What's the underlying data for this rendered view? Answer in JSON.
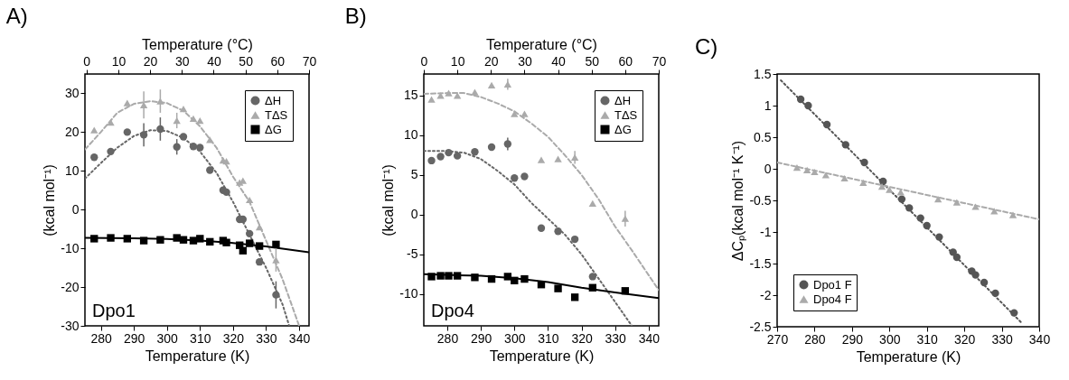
{
  "chart_data": [
    {
      "type": "scatter",
      "title": "A)",
      "xlabel": "Temperature (K)",
      "ylabel": "(kcal mol⁻¹)",
      "x2label": "Temperature (°C)",
      "xlim": [
        275.2,
        343
      ],
      "xticks": [
        280,
        290,
        300,
        310,
        320,
        330,
        340
      ],
      "x2lim": [
        -0.5,
        70
      ],
      "x2ticks": [
        0,
        10,
        20,
        30,
        40,
        50,
        60,
        70
      ],
      "ylim": [
        -30,
        35
      ],
      "yticks": [
        -30,
        -20,
        -10,
        0,
        10,
        20,
        30
      ],
      "legend": "top right",
      "annotations": [
        "Dpo1"
      ],
      "series": [
        {
          "type": "line",
          "color": "#666666",
          "line_style": "dotted",
          "x": [
            275.2,
            280,
            285,
            290,
            295,
            300,
            305,
            310,
            315,
            320,
            325,
            330,
            335,
            337
          ],
          "values": [
            8,
            12,
            16,
            19,
            20.5,
            20.3,
            18.5,
            15,
            9.5,
            2,
            -6.5,
            -15,
            -24.5,
            -30
          ]
        },
        {
          "type": "line",
          "color": "#aaaaaa",
          "line_style": "dashed",
          "x": [
            275.2,
            280,
            285,
            290,
            295,
            300,
            305,
            310,
            315,
            320,
            325,
            330,
            335,
            340
          ],
          "values": [
            15.5,
            20,
            25,
            27.3,
            28,
            27.5,
            25.5,
            21.5,
            16,
            8.5,
            2,
            -8,
            -18,
            -30
          ]
        },
        {
          "type": "line",
          "color": "#000000",
          "line_style": "solid",
          "x": [
            275.2,
            290,
            300,
            310,
            320,
            330,
            343
          ],
          "values": [
            -7.3,
            -7.4,
            -7.6,
            -8,
            -8.6,
            -9.5,
            -11
          ]
        },
        {
          "type": "scatter",
          "name": "ΔH",
          "color": "#666666",
          "marker": "circle",
          "x": [
            278,
            283,
            288,
            293,
            298,
            303,
            305,
            308,
            310,
            313,
            317,
            318,
            322,
            323,
            325,
            328,
            333
          ],
          "values": [
            13.5,
            15,
            20,
            19.3,
            20.8,
            16.2,
            18.8,
            16.3,
            16,
            10.2,
            5,
            4.5,
            -2.5,
            -2.5,
            -6.2,
            -13.5,
            -22
          ],
          "errors": [
            null,
            null,
            null,
            3,
            3,
            2,
            null,
            null,
            null,
            null,
            null,
            null,
            null,
            null,
            null,
            null,
            3.5
          ]
        },
        {
          "type": "scatter",
          "name": "TΔS",
          "color": "#aaaaaa",
          "marker": "triangle",
          "x": [
            278,
            283,
            288,
            293,
            298,
            303,
            305,
            308,
            310,
            313,
            317,
            318,
            322,
            323,
            325,
            328,
            333
          ],
          "values": [
            20.5,
            22.5,
            27.5,
            27,
            28,
            23,
            26,
            23.5,
            23,
            18,
            12.7,
            12.5,
            7,
            7.5,
            2.5,
            -4.5,
            -13
          ],
          "errors": [
            null,
            null,
            null,
            3.5,
            3,
            2,
            null,
            null,
            null,
            null,
            null,
            null,
            null,
            null,
            null,
            null,
            3
          ]
        },
        {
          "type": "scatter",
          "name": "ΔG",
          "color": "#000000",
          "marker": "square",
          "x": [
            278,
            283,
            288,
            293,
            298,
            303,
            305,
            308,
            310,
            313,
            317,
            318,
            322,
            323,
            325,
            328,
            333
          ],
          "values": [
            -7.5,
            -7.3,
            -7.5,
            -8,
            -7.8,
            -7.3,
            -7.8,
            -8,
            -7.5,
            -8.3,
            -8,
            -8.5,
            -9.2,
            -10.6,
            -8.7,
            -9.4,
            -9
          ]
        }
      ]
    },
    {
      "type": "scatter",
      "title": "B)",
      "xlabel": "Temperature (K)",
      "ylabel": "(kcal mol⁻¹)",
      "x2label": "Temperature (°C)",
      "xlim": [
        273,
        343
      ],
      "xticks": [
        280,
        290,
        300,
        310,
        320,
        330,
        340
      ],
      "x2lim": [
        0,
        70
      ],
      "x2ticks": [
        0,
        10,
        20,
        30,
        40,
        50,
        60,
        70
      ],
      "ylim": [
        -14,
        17.7
      ],
      "yticks": [
        -10,
        -5,
        0,
        5,
        10,
        15
      ],
      "legend": "top right",
      "annotations": [
        "Dpo4"
      ],
      "series": [
        {
          "type": "line",
          "color": "#666666",
          "line_style": "dotted",
          "x": [
            273,
            280,
            285,
            290,
            295,
            300,
            305,
            310,
            315,
            320,
            325,
            330,
            335
          ],
          "values": [
            8,
            8,
            7.8,
            7,
            5.5,
            3.8,
            1.5,
            -0.5,
            -2.5,
            -5,
            -8,
            -11,
            -14
          ]
        },
        {
          "type": "line",
          "color": "#aaaaaa",
          "line_style": "dashed",
          "x": [
            273,
            280,
            285,
            290,
            295,
            300,
            305,
            310,
            315,
            320,
            325,
            330,
            335,
            343
          ],
          "values": [
            15.2,
            15.3,
            15.3,
            14.8,
            14,
            13,
            11.5,
            9.8,
            7.5,
            5,
            2,
            -1.5,
            -4.5,
            -9.5
          ]
        },
        {
          "type": "line",
          "color": "#000000",
          "line_style": "solid",
          "x": [
            273,
            290,
            300,
            310,
            320,
            330,
            343
          ],
          "values": [
            -7.5,
            -7.7,
            -8,
            -8.5,
            -9.2,
            -9.8,
            -10.5
          ]
        },
        {
          "type": "scatter",
          "name": "ΔH",
          "color": "#666666",
          "marker": "circle",
          "x": [
            275.3,
            278,
            280.4,
            283,
            288.2,
            293.2,
            298,
            300,
            303,
            308,
            313,
            318,
            323.3
          ],
          "values": [
            6.8,
            7.3,
            7.8,
            7.4,
            7.9,
            8.5,
            8.9,
            4.6,
            4.8,
            -1.7,
            -2.1,
            -3.1,
            -7.8
          ],
          "errors": [
            null,
            null,
            null,
            null,
            null,
            null,
            0.8,
            null,
            null,
            null,
            null,
            null,
            null
          ]
        },
        {
          "type": "scatter",
          "name": "TΔS",
          "color": "#aaaaaa",
          "marker": "triangle",
          "x": [
            275.3,
            278,
            280.4,
            283,
            288.2,
            293.2,
            298,
            300,
            303,
            308,
            313,
            318,
            323.3,
            333
          ],
          "values": [
            14.5,
            15,
            15.3,
            15,
            15.4,
            16.3,
            16.4,
            12.7,
            12.7,
            6.9,
            7,
            7.2,
            1.4,
            -0.5
          ],
          "errors": [
            null,
            null,
            null,
            null,
            null,
            null,
            0.7,
            null,
            null,
            null,
            null,
            0.8,
            null,
            1
          ]
        },
        {
          "type": "scatter",
          "name": "ΔG",
          "color": "#000000",
          "marker": "square",
          "x": [
            275.3,
            278,
            280.4,
            283,
            288.2,
            293.2,
            298,
            300,
            303,
            308,
            313,
            318,
            323.3,
            333
          ],
          "values": [
            -7.8,
            -7.7,
            -7.7,
            -7.7,
            -7.9,
            -8.1,
            -7.8,
            -8.3,
            -8.1,
            -8.8,
            -9.3,
            -10.4,
            -9.2,
            -9.6
          ]
        }
      ]
    },
    {
      "type": "scatter",
      "title": "C)",
      "xlabel": "Temperature (K)",
      "ylabel": "ΔCₚ(kcal mol⁻¹ K⁻¹)",
      "xlim": [
        270,
        340
      ],
      "xticks": [
        270,
        280,
        290,
        300,
        310,
        320,
        330,
        340
      ],
      "ylim": [
        -2.5,
        1.5
      ],
      "yticks": [
        -2.5,
        -2,
        -1.5,
        -1,
        -0.5,
        0,
        0.5,
        1,
        1.5
      ],
      "legend": "bottom left",
      "series": [
        {
          "type": "line",
          "color": "#555555",
          "line_style": "dotted",
          "x": [
            271,
            335.5
          ],
          "values": [
            1.4,
            -2.45
          ]
        },
        {
          "type": "line",
          "color": "#aaaaaa",
          "line_style": "dashed",
          "x": [
            270,
            340
          ],
          "values": [
            0.1,
            -0.8
          ]
        },
        {
          "type": "scatter",
          "name": "Dpo1 F",
          "color": "#555555",
          "marker": "circle",
          "x": [
            276.3,
            278.3,
            283.3,
            288.3,
            293.3,
            298.3,
            303.3,
            305.3,
            308.3,
            310,
            313.3,
            317,
            318,
            322,
            323,
            325.3,
            328.3,
            333.3
          ],
          "values": [
            1.1,
            1,
            0.7,
            0.38,
            0.1,
            -0.2,
            -0.48,
            -0.62,
            -0.78,
            -0.9,
            -1.08,
            -1.32,
            -1.4,
            -1.62,
            -1.68,
            -1.8,
            -1.97,
            -2.28
          ]
        },
        {
          "type": "scatter",
          "name": "Dpo4 F",
          "color": "#aaaaaa",
          "marker": "triangle",
          "x": [
            275.3,
            278,
            280,
            283,
            288,
            293,
            298,
            300,
            303,
            313,
            318,
            323,
            328,
            333
          ],
          "values": [
            0.02,
            -0.02,
            -0.05,
            -0.1,
            -0.15,
            -0.22,
            -0.28,
            -0.33,
            -0.37,
            -0.48,
            -0.53,
            -0.6,
            -0.67,
            -0.73
          ]
        }
      ]
    }
  ]
}
